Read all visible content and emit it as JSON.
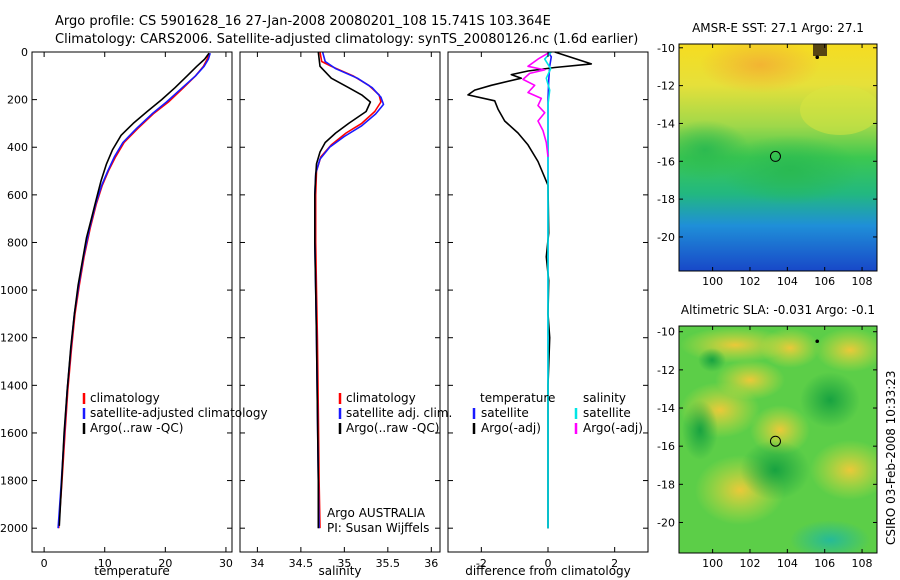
{
  "header": {
    "title_line1": "Argo profile: CS 5901628_16 27-Jan-2008 20080201_108 15.741S 103.364E",
    "title_line2": "Climatology: CARS2006. Satellite-adjusted climatology: synTS_20080126.nc (1.6d earlier)"
  },
  "footer": {
    "credit": "CSIRO 03-Feb-2008 10:33:23"
  },
  "colors": {
    "climatology": "#ff0000",
    "satellite": "#1a1aff",
    "argo": "#000000",
    "cyan": "#00e5e5",
    "magenta": "#ff00ff"
  },
  "chart_data": [
    {
      "type": "line",
      "id": "temperature",
      "xlabel": "temperature",
      "xlim": [
        -2,
        31
      ],
      "ylim": [
        2100,
        0
      ],
      "xticks": [
        0,
        10,
        20,
        30
      ],
      "yticks": [
        0,
        200,
        400,
        600,
        800,
        1000,
        1200,
        1400,
        1600,
        1800,
        2000
      ],
      "legend": [
        "climatology",
        "satellite-adjusted climatology",
        "Argo(..raw -QC)"
      ],
      "series": [
        {
          "name": "climatology",
          "color": "#ff0000",
          "points": [
            [
              27.2,
              5
            ],
            [
              26.9,
              30
            ],
            [
              26.3,
              60
            ],
            [
              25,
              100
            ],
            [
              23,
              150
            ],
            [
              20.5,
              210
            ],
            [
              18,
              260
            ],
            [
              15.5,
              320
            ],
            [
              13.2,
              380
            ],
            [
              11.8,
              440
            ],
            [
              10.6,
              500
            ],
            [
              9.6,
              560
            ],
            [
              8.6,
              640
            ],
            [
              7.6,
              740
            ],
            [
              6.6,
              860
            ],
            [
              5.8,
              980
            ],
            [
              5.1,
              1100
            ],
            [
              4.5,
              1250
            ],
            [
              3.9,
              1420
            ],
            [
              3.4,
              1620
            ],
            [
              2.9,
              1820
            ],
            [
              2.4,
              2000
            ]
          ]
        },
        {
          "name": "satellite-adjusted climatology",
          "color": "#1a1aff",
          "points": [
            [
              27.4,
              5
            ],
            [
              27.1,
              30
            ],
            [
              26.4,
              60
            ],
            [
              25,
              100
            ],
            [
              22.8,
              150
            ],
            [
              20.2,
              210
            ],
            [
              17.8,
              260
            ],
            [
              15.3,
              320
            ],
            [
              13,
              380
            ],
            [
              11.6,
              440
            ],
            [
              10.5,
              500
            ],
            [
              9.5,
              560
            ],
            [
              8.5,
              640
            ],
            [
              7.5,
              740
            ],
            [
              6.5,
              860
            ],
            [
              5.7,
              980
            ],
            [
              5,
              1100
            ],
            [
              4.4,
              1250
            ],
            [
              3.8,
              1420
            ],
            [
              3.3,
              1620
            ],
            [
              2.8,
              1820
            ],
            [
              2.3,
              2000
            ]
          ]
        },
        {
          "name": "Argo(..raw -QC)",
          "color": "#000000",
          "points": [
            [
              27.2,
              5
            ],
            [
              26.5,
              30
            ],
            [
              25.2,
              60
            ],
            [
              23.6,
              100
            ],
            [
              21.6,
              150
            ],
            [
              19.4,
              200
            ],
            [
              17,
              250
            ],
            [
              14.7,
              300
            ],
            [
              12.7,
              350
            ],
            [
              11.3,
              410
            ],
            [
              10.3,
              470
            ],
            [
              9.4,
              540
            ],
            [
              8.6,
              620
            ],
            [
              7.8,
              700
            ],
            [
              7,
              780
            ],
            [
              6.3,
              880
            ],
            [
              5.6,
              980
            ],
            [
              5,
              1100
            ],
            [
              4.4,
              1240
            ],
            [
              3.8,
              1420
            ],
            [
              3.3,
              1600
            ],
            [
              2.9,
              1800
            ],
            [
              2.5,
              1990
            ]
          ]
        }
      ]
    },
    {
      "type": "line",
      "id": "salinity",
      "xlabel": "salinity",
      "xlim": [
        33.8,
        36.1
      ],
      "ylim": [
        2100,
        0
      ],
      "xticks": [
        34,
        34.5,
        35,
        35.5,
        36
      ],
      "legend": [
        "climatology",
        "satellite adj. clim.",
        "Argo(..raw -QC)"
      ],
      "annotation": [
        "Argo AUSTRALIA",
        "PI: Susan Wijffels"
      ],
      "series": [
        {
          "name": "climatology",
          "color": "#ff0000",
          "points": [
            [
              34.72,
              0
            ],
            [
              34.74,
              40
            ],
            [
              34.85,
              60
            ],
            [
              35.1,
              100
            ],
            [
              35.28,
              140
            ],
            [
              35.4,
              180
            ],
            [
              35.42,
              210
            ],
            [
              35.35,
              250
            ],
            [
              35.2,
              300
            ],
            [
              35.02,
              340
            ],
            [
              34.85,
              390
            ],
            [
              34.73,
              440
            ],
            [
              34.68,
              500
            ],
            [
              34.67,
              600
            ],
            [
              34.67,
              800
            ],
            [
              34.68,
              1000
            ],
            [
              34.69,
              1200
            ],
            [
              34.7,
              1500
            ],
            [
              34.71,
              1800
            ],
            [
              34.72,
              2000
            ]
          ]
        },
        {
          "name": "satellite adj. clim.",
          "color": "#1a1aff",
          "points": [
            [
              34.75,
              0
            ],
            [
              34.78,
              40
            ],
            [
              34.9,
              70
            ],
            [
              35.15,
              110
            ],
            [
              35.32,
              150
            ],
            [
              35.42,
              190
            ],
            [
              35.45,
              220
            ],
            [
              35.36,
              260
            ],
            [
              35.2,
              310
            ],
            [
              35,
              355
            ],
            [
              34.83,
              400
            ],
            [
              34.72,
              450
            ],
            [
              34.67,
              510
            ],
            [
              34.66,
              600
            ],
            [
              34.66,
              800
            ],
            [
              34.67,
              1000
            ],
            [
              34.68,
              1200
            ],
            [
              34.69,
              1500
            ],
            [
              34.7,
              1800
            ],
            [
              34.71,
              2000
            ]
          ]
        },
        {
          "name": "Argo(..raw -QC)",
          "color": "#000000",
          "points": [
            [
              34.7,
              0
            ],
            [
              34.72,
              60
            ],
            [
              34.85,
              110
            ],
            [
              35.05,
              150
            ],
            [
              35.2,
              180
            ],
            [
              35.3,
              210
            ],
            [
              35.25,
              250
            ],
            [
              35.05,
              300
            ],
            [
              34.9,
              340
            ],
            [
              34.78,
              380
            ],
            [
              34.72,
              420
            ],
            [
              34.68,
              470
            ],
            [
              34.67,
              520
            ],
            [
              34.66,
              600
            ],
            [
              34.66,
              800
            ],
            [
              34.67,
              1000
            ],
            [
              34.68,
              1200
            ],
            [
              34.69,
              1500
            ],
            [
              34.7,
              1800
            ],
            [
              34.7,
              2000
            ]
          ]
        }
      ]
    },
    {
      "type": "line",
      "id": "difference",
      "xlabel": "difference from climatology",
      "xlim": [
        -3,
        3
      ],
      "ylim": [
        2100,
        0
      ],
      "xticks": [
        -2,
        0,
        2
      ],
      "legend_left_title": "temperature",
      "legend_right_title": "salinity",
      "legend_left": [
        "satellite",
        "Argo(-adj)"
      ],
      "legend_right": [
        "satellite",
        "Argo(-adj)"
      ],
      "series": [
        {
          "name": "temperature satellite",
          "color": "#1a1aff",
          "points": [
            [
              0,
              0
            ],
            [
              0.1,
              20
            ],
            [
              0.05,
              60
            ],
            [
              0.02,
              120
            ],
            [
              0,
              200
            ],
            [
              0,
              400
            ],
            [
              0,
              700
            ],
            [
              0,
              1000
            ],
            [
              0,
              1500
            ],
            [
              0,
              2000
            ]
          ]
        },
        {
          "name": "temperature Argo(-adj)",
          "color": "#000000",
          "points": [
            [
              0.2,
              0
            ],
            [
              1.3,
              50
            ],
            [
              0.2,
              65
            ],
            [
              -0.6,
              80
            ],
            [
              -1.1,
              95
            ],
            [
              -0.8,
              110
            ],
            [
              -1.7,
              140
            ],
            [
              -2.2,
              160
            ],
            [
              -2.4,
              180
            ],
            [
              -1.6,
              205
            ],
            [
              -1.5,
              240
            ],
            [
              -1.3,
              290
            ],
            [
              -0.9,
              340
            ],
            [
              -0.6,
              390
            ],
            [
              -0.3,
              460
            ],
            [
              0,
              560
            ],
            [
              0.02,
              760
            ],
            [
              -0.05,
              860
            ],
            [
              0.02,
              960
            ],
            [
              0,
              1100
            ],
            [
              0.05,
              1200
            ],
            [
              0,
              1400
            ],
            [
              0,
              2000
            ]
          ]
        },
        {
          "name": "salinity satellite",
          "color": "#00e5e5",
          "points": [
            [
              0.1,
              0
            ],
            [
              -0.1,
              30
            ],
            [
              0.08,
              70
            ],
            [
              -0.05,
              110
            ],
            [
              0.05,
              160
            ],
            [
              0,
              220
            ],
            [
              0,
              300
            ],
            [
              0,
              500
            ],
            [
              0,
              800
            ],
            [
              0,
              1100
            ],
            [
              0,
              1500
            ],
            [
              0,
              2000
            ]
          ]
        },
        {
          "name": "salinity Argo(-adj)",
          "color": "#ff00ff",
          "points": [
            [
              0,
              5
            ],
            [
              -0.3,
              30
            ],
            [
              -0.6,
              60
            ],
            [
              -0.1,
              75
            ],
            [
              -0.55,
              90
            ],
            [
              -0.75,
              115
            ],
            [
              -0.4,
              140
            ],
            [
              -0.6,
              170
            ],
            [
              -0.2,
              195
            ],
            [
              -0.3,
              225
            ],
            [
              -0.1,
              255
            ],
            [
              -0.3,
              290
            ],
            [
              -0.15,
              330
            ],
            [
              -0.05,
              380
            ],
            [
              0,
              440
            ]
          ]
        }
      ]
    },
    {
      "type": "heatmap",
      "id": "sst",
      "title": "AMSR-E SST: 27.1 Argo: 27.1",
      "xlim": [
        98.2,
        108.8
      ],
      "ylim": [
        -21.8,
        -9.8
      ],
      "xticks": [
        100,
        102,
        104,
        106,
        108
      ],
      "yticks": [
        -10,
        -12,
        -14,
        -16,
        -18,
        -20
      ],
      "argo_position": [
        103.364,
        -15.741
      ],
      "marker_position": [
        105.6,
        -10.5
      ]
    },
    {
      "type": "heatmap",
      "id": "sla",
      "title": "Altimetric SLA: -0.031 Argo: -0.1",
      "xlim": [
        98.2,
        108.8
      ],
      "ylim": [
        -21.6,
        -9.7
      ],
      "xticks": [
        100,
        102,
        104,
        106,
        108
      ],
      "yticks": [
        -10,
        -12,
        -14,
        -16,
        -18,
        -20
      ],
      "argo_position": [
        103.364,
        -15.741
      ],
      "marker_position": [
        105.6,
        -10.5
      ]
    }
  ]
}
